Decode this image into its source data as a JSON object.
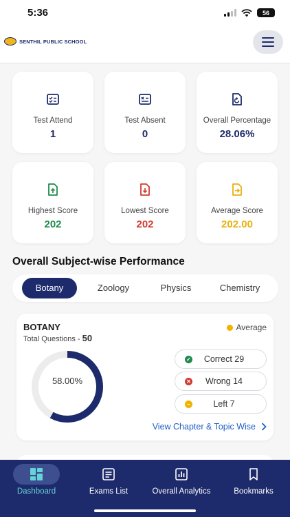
{
  "status": {
    "time": "5:36",
    "battery": "56"
  },
  "header": {
    "school_name": "SENTHIL PUBLIC SCHOOL"
  },
  "stats": [
    {
      "label": "Test Attend",
      "value": "1",
      "icon": "checklist-icon",
      "color": "#1d2a6b"
    },
    {
      "label": "Test Absent",
      "value": "0",
      "icon": "x-list-icon",
      "color": "#1d2a6b"
    },
    {
      "label": "Overall Percentage",
      "value": "28.06%",
      "icon": "refresh-doc-icon",
      "color": "#1d2a6b"
    },
    {
      "label": "Highest Score",
      "value": "202",
      "icon": "upload-doc-icon",
      "color": "#1f8a4c"
    },
    {
      "label": "Lowest Score",
      "value": "202",
      "icon": "download-doc-icon",
      "color": "#d23b2f"
    },
    {
      "label": "Average Score",
      "value": "202.00",
      "icon": "arrow-doc-icon",
      "color": "#e8b10e"
    }
  ],
  "section": {
    "title": "Overall Subject-wise Performance"
  },
  "tabs": [
    "Botany",
    "Zoology",
    "Physics",
    "Chemistry"
  ],
  "active_tab": "Botany",
  "subject": {
    "name": "BOTANY",
    "total_label": "Total Questions -",
    "total_value": "50",
    "grade": "Average",
    "percentage": "58.00%",
    "percentage_value": 58,
    "correct": "Correct 29",
    "wrong": "Wrong 14",
    "left": "Left 7",
    "link": "View Chapter & Topic Wise"
  },
  "nav": [
    {
      "label": "Dashboard",
      "icon": "dashboard-icon",
      "active": true
    },
    {
      "label": "Exams List",
      "icon": "exam-list-icon",
      "active": false
    },
    {
      "label": "Overall Analytics",
      "icon": "analytics-icon",
      "active": false
    },
    {
      "label": "Bookmarks",
      "icon": "bookmark-icon",
      "active": false
    }
  ],
  "colors": {
    "primary": "#1d2a6b",
    "accent_tab_text": "#66d3d6",
    "link": "#1f5fc4",
    "green": "#1f8a4c",
    "red": "#d23b2f",
    "amber": "#e8b10e"
  }
}
